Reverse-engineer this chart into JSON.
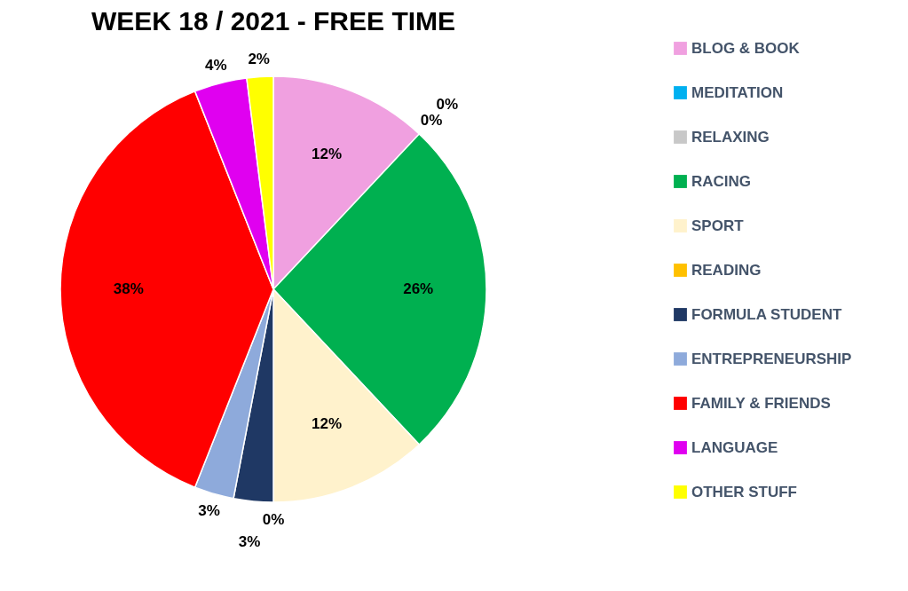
{
  "chart_data": {
    "type": "pie",
    "title": "WEEK 18 / 2021 - FREE TIME",
    "categories": [
      "BLOG & BOOK",
      "MEDITATION",
      "RELAXING",
      "RACING",
      "SPORT",
      "READING",
      "FORMULA STUDENT",
      "ENTREPRENEURSHIP",
      "FAMILY & FRIENDS",
      "LANGUAGE",
      "OTHER STUFF"
    ],
    "values": [
      12,
      0,
      0,
      26,
      12,
      0,
      3,
      3,
      38,
      4,
      2
    ],
    "value_labels": [
      "12%",
      "0%",
      "0%",
      "26%",
      "12%",
      "0%",
      "3%",
      "3%",
      "38%",
      "4%",
      "2%"
    ],
    "colors": [
      "#f0a0e0",
      "#00b0f0",
      "#c8c8c8",
      "#00b050",
      "#fff2cc",
      "#ffc000",
      "#1f3864",
      "#8eaadb",
      "#ff0000",
      "#e000f0",
      "#ffff00"
    ],
    "legend": "right"
  }
}
